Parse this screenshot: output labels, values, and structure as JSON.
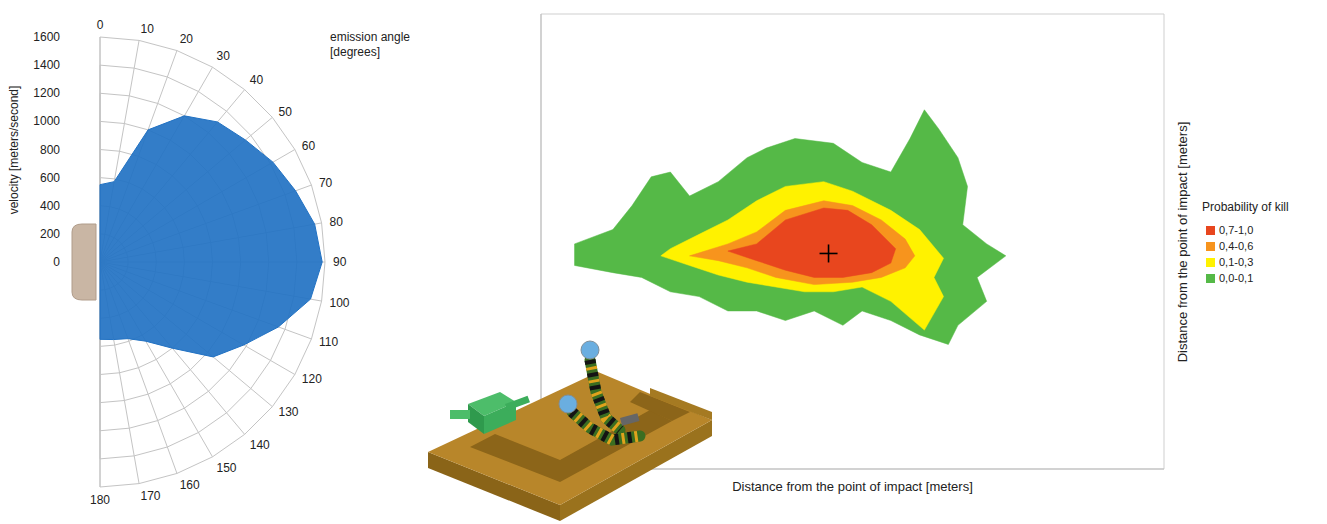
{
  "chart_data": [
    {
      "type": "radar",
      "x_label": "emission angle [degrees]",
      "y_label": "velocity [meters/second]",
      "x": [
        0,
        10,
        20,
        30,
        40,
        50,
        60,
        70,
        80,
        90,
        100,
        110,
        120,
        130,
        140,
        150,
        160,
        170,
        180
      ],
      "values": [
        550,
        580,
        1000,
        1200,
        1300,
        1350,
        1420,
        1480,
        1550,
        1580,
        1520,
        1350,
        1180,
        1050,
        800,
        650,
        580,
        560,
        550
      ],
      "color": "#2272c3",
      "xlim": [
        0,
        180
      ],
      "xticks": [
        0,
        10,
        20,
        30,
        40,
        50,
        60,
        70,
        80,
        90,
        100,
        110,
        120,
        130,
        140,
        150,
        160,
        170,
        180
      ],
      "ylim": [
        0,
        1600
      ],
      "yticks": [
        0,
        200,
        400,
        600,
        800,
        1000,
        1200,
        1400,
        1600
      ],
      "grid": true
    },
    {
      "type": "contour",
      "x_label": "Distance from the point of impact [meters]",
      "y_label": "Distance from the point of impact [meters]",
      "xlim": [
        -12,
        14
      ],
      "ylim": [
        -9,
        10
      ],
      "xticks": [
        -12,
        -11,
        -10,
        -9,
        -8,
        -7,
        -6,
        -5,
        -4,
        -3,
        -2,
        -1,
        0,
        1,
        2,
        3,
        4,
        5,
        6,
        7,
        8,
        9,
        10,
        11,
        12,
        13,
        14
      ],
      "yticks": [
        -9,
        -8,
        -7,
        -6,
        -5,
        -4,
        -3,
        -2,
        -1,
        0,
        1,
        2,
        3,
        4,
        5,
        6,
        7,
        8,
        9,
        10
      ],
      "grid": true,
      "tick_labels": false,
      "legend": "right",
      "legend_title": "Probability of kill",
      "impact_point": {
        "x": 0,
        "y": 0,
        "marker": "cross"
      },
      "series": [
        {
          "name": "0,7-1,0",
          "color": "#e8461e",
          "x": [
            -4.2,
            -3.0,
            -1.8,
            -0.2,
            0.8,
            1.8,
            2.8,
            2.6,
            1.8,
            0.6,
            -0.6,
            -1.8,
            -3.0
          ],
          "y": [
            0.1,
            0.4,
            1.4,
            1.9,
            1.8,
            1.2,
            0.2,
            -0.4,
            -0.8,
            -1.0,
            -1.0,
            -0.7,
            -0.3
          ]
        },
        {
          "name": "0,4-0,6",
          "color": "#f7941d",
          "x": [
            -5.8,
            -4.2,
            -3.0,
            -1.8,
            -0.2,
            1.0,
            2.2,
            3.2,
            3.6,
            3.2,
            2.2,
            1.0,
            -0.6,
            -2.2,
            -3.4,
            -4.6
          ],
          "y": [
            -0.1,
            0.4,
            0.9,
            1.8,
            2.2,
            2.0,
            1.4,
            0.6,
            -0.1,
            -0.6,
            -1.0,
            -1.2,
            -1.3,
            -1.0,
            -0.6,
            -0.3
          ]
        },
        {
          "name": "0,1-0,3",
          "color": "#fff200",
          "x": [
            -7.0,
            -6.6,
            -5.4,
            -4.2,
            -3.0,
            -1.8,
            -0.2,
            1.0,
            2.6,
            3.8,
            4.8,
            4.4,
            4.8,
            4.0,
            2.6,
            1.4,
            0.2,
            -1.0,
            -2.2,
            -3.4,
            -4.6,
            -5.8
          ],
          "y": [
            -0.1,
            0.2,
            0.8,
            1.4,
            2.2,
            2.8,
            3.0,
            2.6,
            1.8,
            1.0,
            -0.2,
            -1.0,
            -1.8,
            -3.2,
            -2.0,
            -1.4,
            -1.6,
            -1.6,
            -1.4,
            -1.2,
            -0.9,
            -0.5
          ]
        },
        {
          "name": "0,0-0,1",
          "color": "#55b947",
          "x": [
            -10.6,
            -9.0,
            -8.2,
            -7.4,
            -6.6,
            -5.8,
            -4.6,
            -3.4,
            -2.6,
            -1.4,
            0.2,
            1.4,
            2.6,
            3.4,
            4.0,
            4.6,
            5.4,
            5.8,
            5.6,
            6.6,
            7.4,
            6.2,
            6.6,
            5.4,
            5.0,
            3.8,
            2.6,
            1.4,
            0.6,
            -0.6,
            -1.8,
            -3.0,
            -4.2,
            -5.4,
            -6.6,
            -7.8,
            -9.0,
            -10.6
          ],
          "y": [
            0.4,
            1.0,
            2.0,
            3.2,
            3.4,
            2.4,
            3.0,
            4.0,
            4.4,
            4.8,
            4.6,
            3.8,
            3.4,
            4.8,
            6.0,
            5.2,
            4.0,
            2.8,
            1.2,
            0.4,
            -0.1,
            -1.0,
            -2.0,
            -3.0,
            -3.8,
            -3.4,
            -2.8,
            -2.4,
            -3.0,
            -2.4,
            -2.8,
            -2.4,
            -2.4,
            -1.8,
            -1.6,
            -1.0,
            -0.8,
            -0.5
          ]
        }
      ]
    }
  ]
}
